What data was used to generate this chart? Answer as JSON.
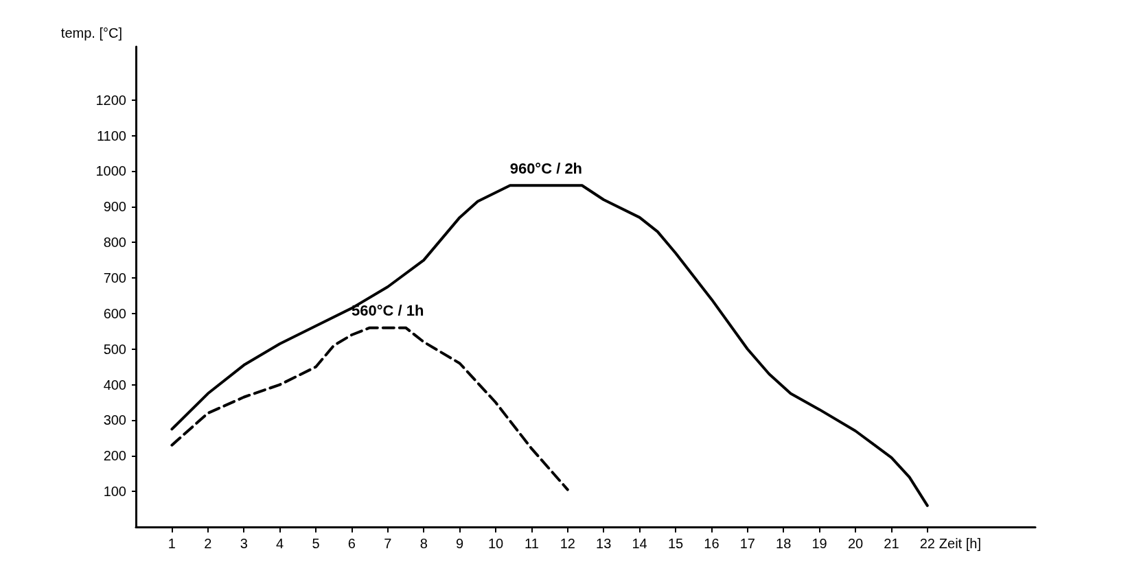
{
  "chart_data": {
    "type": "line",
    "xlabel": "Zeit [h]",
    "ylabel": "temp. [°C]",
    "xlim": [
      0,
      25
    ],
    "xticks": [
      1,
      2,
      3,
      4,
      5,
      6,
      7,
      8,
      9,
      10,
      11,
      12,
      13,
      14,
      15,
      16,
      17,
      18,
      19,
      20,
      21,
      22
    ],
    "ylim": [
      0,
      1350
    ],
    "yticks": [
      100,
      200,
      300,
      400,
      500,
      600,
      700,
      800,
      900,
      1000,
      1100,
      1200
    ],
    "grid": false,
    "marker": "none",
    "series": [
      {
        "color": "#000000",
        "line_style": "solid",
        "x": [
          1,
          2,
          3,
          4,
          5,
          6,
          7,
          8,
          9,
          9.5,
          10.4,
          12.4,
          13,
          14,
          14.5,
          15,
          16,
          17,
          17.6,
          18.2,
          19,
          20,
          21,
          21.5,
          22
        ],
        "values": [
          275,
          375,
          455,
          515,
          565,
          615,
          675,
          750,
          870,
          915,
          960,
          960,
          920,
          870,
          830,
          770,
          640,
          500,
          430,
          375,
          330,
          270,
          195,
          140,
          60
        ]
      },
      {
        "color": "#000000",
        "line_style": "dashed",
        "x": [
          1,
          2,
          3,
          4,
          5,
          5.5,
          6,
          6.5,
          7.5,
          8,
          9,
          10,
          11,
          12
        ],
        "values": [
          230,
          320,
          365,
          400,
          450,
          510,
          540,
          560,
          560,
          520,
          460,
          350,
          220,
          105
        ]
      }
    ],
    "annotations": [
      {
        "text": "960°C / 2h",
        "x": 11.4,
        "y": 960
      },
      {
        "text": "560°C / 1h",
        "x": 7,
        "y": 560
      }
    ]
  }
}
